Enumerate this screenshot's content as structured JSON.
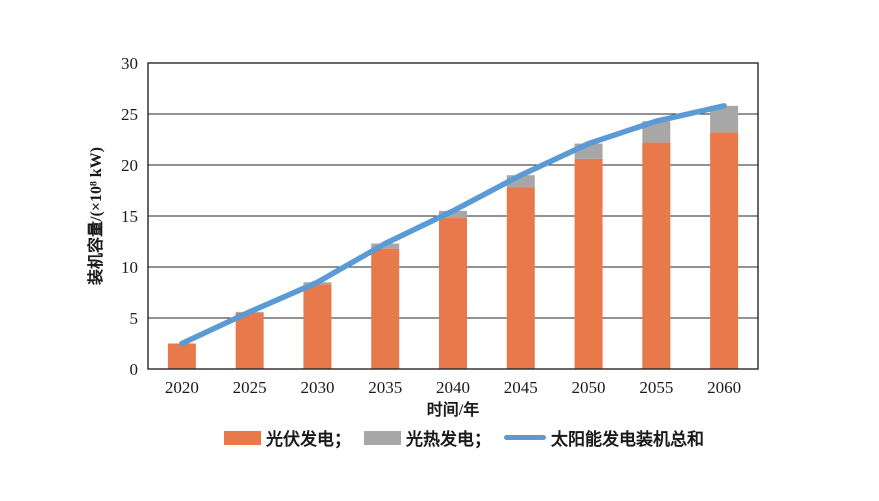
{
  "chart_data": {
    "type": "bar",
    "subtype": "stacked-bars-with-line-overlay",
    "title": "",
    "categories": [
      "2020",
      "2025",
      "2030",
      "2035",
      "2040",
      "2045",
      "2050",
      "2055",
      "2060"
    ],
    "series": [
      {
        "name": "光伏发电",
        "type": "bar",
        "color": "#E8794A",
        "values": [
          2.5,
          5.5,
          8.3,
          11.8,
          14.8,
          17.8,
          20.6,
          22.2,
          23.2
        ]
      },
      {
        "name": "光热发电",
        "type": "bar",
        "color": "#A7A7A7",
        "values": [
          0,
          0.1,
          0.2,
          0.5,
          0.7,
          1.2,
          1.5,
          2.1,
          2.6
        ]
      },
      {
        "name": "太阳能发电装机总和",
        "type": "line",
        "color": "#5B9BD5",
        "values": [
          2.5,
          5.6,
          8.5,
          12.3,
          15.5,
          19.0,
          22.1,
          24.3,
          25.8
        ]
      }
    ],
    "xlabel": "时间/年",
    "ylabel": "装机容量/(×10⁸ kW)",
    "ylim": [
      0,
      30
    ],
    "ytick_step": 5,
    "yticks": [
      0,
      5,
      10,
      15,
      20,
      25,
      30
    ],
    "grid": true,
    "axis_color": "#262626",
    "legend_position": "bottom",
    "legend_labels": [
      "光伏发电；",
      "光热发电；",
      "太阳能发电装机总和"
    ]
  }
}
